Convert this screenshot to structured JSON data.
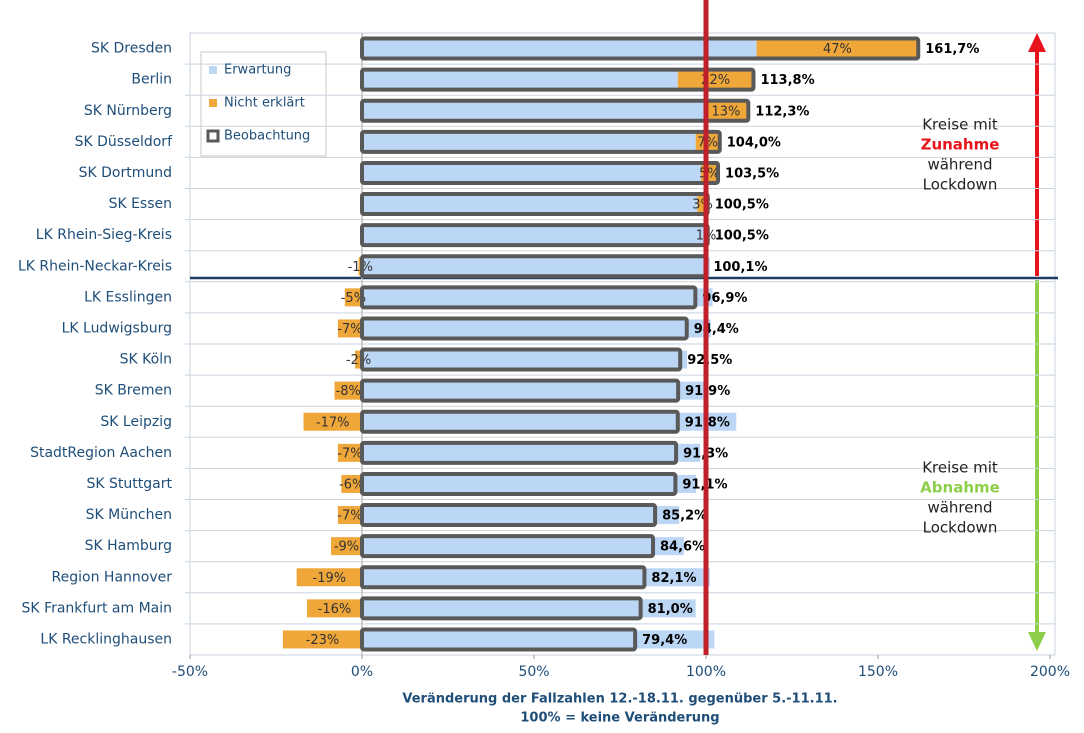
{
  "chart_data": {
    "type": "bar",
    "orientation": "horizontal",
    "categories": [
      "SK Dresden",
      "Berlin",
      "SK Nürnberg",
      "SK Düsseldorf",
      "SK Dortmund",
      "SK Essen",
      "LK Rhein-Sieg-Kreis",
      "LK Rhein-Neckar-Kreis",
      "LK Esslingen",
      "LK Ludwigsburg",
      "SK Köln",
      "SK Bremen",
      "SK Leipzig",
      "StadtRegion Aachen",
      "SK Stuttgart",
      "SK München",
      "SK Hamburg",
      "Region Hannover",
      "SK Frankfurt am Main",
      "LK Recklinghausen"
    ],
    "series": [
      {
        "name": "Erwartung",
        "color": "#bcd6f5",
        "values": [
          114.7,
          91.8,
          99.3,
          97.0,
          98.5,
          97.5,
          99.5,
          101.1,
          101.9,
          101.4,
          94.5,
          99.9,
          108.8,
          98.3,
          97.1,
          92.2,
          93.6,
          101.1,
          97.0,
          102.4
        ]
      },
      {
        "name": "Nicht erklärt",
        "color": "#f0a73a",
        "values": [
          47,
          22,
          13,
          7,
          5,
          3,
          1,
          -1,
          -5,
          -7,
          -2,
          -8,
          -17,
          -7,
          -6,
          -7,
          -9,
          -19,
          -16,
          -23
        ],
        "value_labels": [
          "47%",
          "22%",
          "13%",
          "7%",
          "5%",
          "3%",
          "1%",
          "-1%",
          "-5%",
          "-7%",
          "-2%",
          "-8%",
          "-17%",
          "-7%",
          "-6%",
          "-7%",
          "-9%",
          "-19%",
          "-16%",
          "-23%"
        ]
      },
      {
        "name": "Beobachtung",
        "color": "#595959",
        "values": [
          161.7,
          113.8,
          112.3,
          104.0,
          103.5,
          100.5,
          100.5,
          100.1,
          96.9,
          94.4,
          92.5,
          91.9,
          91.8,
          91.3,
          91.1,
          85.2,
          84.6,
          82.1,
          81.0,
          79.4
        ],
        "value_labels": [
          "161,7%",
          "113,8%",
          "112,3%",
          "104,0%",
          "103,5%",
          "100,5%",
          "100,5%",
          "100,1%",
          "96,9%",
          "94,4%",
          "92,5%",
          "91,9%",
          "91,8%",
          "91,3%",
          "91,1%",
          "85,2%",
          "84,6%",
          "82,1%",
          "81,0%",
          "79,4%"
        ]
      }
    ],
    "xlim": [
      -50,
      200
    ],
    "xticks": [
      {
        "value": -50,
        "label": "-50%"
      },
      {
        "value": 0,
        "label": "0%"
      },
      {
        "value": 50,
        "label": "50%"
      },
      {
        "value": 100,
        "label": "100%"
      },
      {
        "value": 150,
        "label": "150%"
      },
      {
        "value": 200,
        "label": "200%"
      }
    ],
    "reference_x": 100,
    "reference_color": "#c0202a",
    "x_label": [
      "Veränderung der Fallzahlen 12.-18.11. gegenüber 5.-11.11.",
      "100% = keine Veränderung"
    ],
    "annotations": [
      [
        "Kreise mit",
        "Zunahme",
        "während",
        "Lockdown"
      ],
      [
        "Kreise mit",
        "Abnahme",
        "während",
        "Lockdown"
      ]
    ],
    "legend": "top-left"
  }
}
